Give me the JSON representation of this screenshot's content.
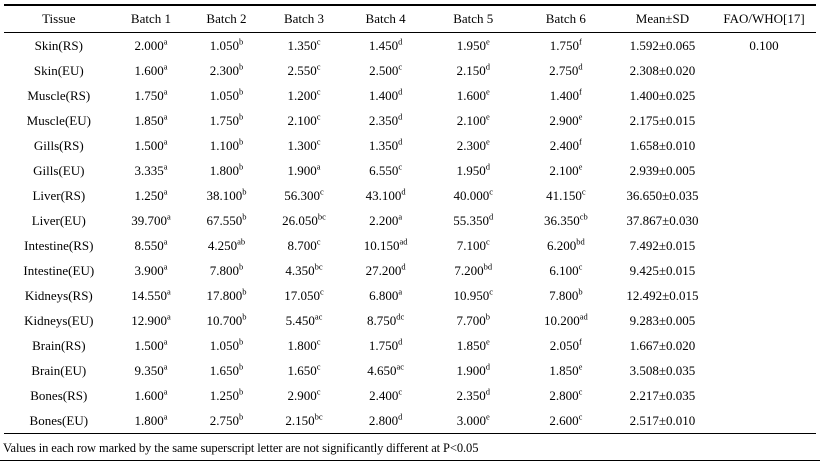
{
  "table": {
    "columns": [
      "Tissue",
      "Batch 1",
      "Batch 2",
      "Batch 3",
      "Batch 4",
      "Batch 5",
      "Batch 6",
      "Mean±SD",
      "FAO/WHO[17]"
    ],
    "rows": [
      {
        "tissue": "Skin(RS)",
        "cells": [
          [
            "2.000",
            "a"
          ],
          [
            "1.050",
            "b"
          ],
          [
            "1.350",
            "c"
          ],
          [
            "1.450",
            "d"
          ],
          [
            "1.950",
            "e"
          ],
          [
            "1.750",
            "f"
          ]
        ],
        "mean": "1.592±0.065",
        "fao": "0.100"
      },
      {
        "tissue": "Skin(EU)",
        "cells": [
          [
            "1.600",
            "a"
          ],
          [
            "2.300",
            "b"
          ],
          [
            "2.550",
            "c"
          ],
          [
            "2.500",
            "c"
          ],
          [
            "2.150",
            "d"
          ],
          [
            "2.750",
            "d"
          ]
        ],
        "mean": "2.308±0.020"
      },
      {
        "tissue": "Muscle(RS)",
        "cells": [
          [
            "1.750",
            "a"
          ],
          [
            "1.050",
            "b"
          ],
          [
            "1.200",
            "c"
          ],
          [
            "1.400",
            "d"
          ],
          [
            "1.600",
            "e"
          ],
          [
            "1.400",
            "f"
          ]
        ],
        "mean": "1.400±0.025"
      },
      {
        "tissue": "Muscle(EU)",
        "cells": [
          [
            "1.850",
            "a"
          ],
          [
            "1.750",
            "b"
          ],
          [
            "2.100",
            "c"
          ],
          [
            "2.350",
            "d"
          ],
          [
            "2.100",
            "e"
          ],
          [
            "2.900",
            "e"
          ]
        ],
        "mean": "2.175±0.015"
      },
      {
        "tissue": "Gills(RS)",
        "cells": [
          [
            "1.500",
            "a"
          ],
          [
            "1.100",
            "b"
          ],
          [
            "1.300",
            "c"
          ],
          [
            "1.350",
            "d"
          ],
          [
            "2.300",
            "e"
          ],
          [
            "2.400",
            "f"
          ]
        ],
        "mean": "1.658±0.010"
      },
      {
        "tissue": "Gills(EU)",
        "cells": [
          [
            "3.335",
            "a"
          ],
          [
            "1.800",
            "b"
          ],
          [
            "1.900",
            "a"
          ],
          [
            "6.550",
            "c"
          ],
          [
            "1.950",
            "d"
          ],
          [
            "2.100",
            "e"
          ]
        ],
        "mean": "2.939±0.005"
      },
      {
        "tissue": "Liver(RS)",
        "cells": [
          [
            "1.250",
            "a"
          ],
          [
            "38.100",
            "b"
          ],
          [
            "56.300",
            "c"
          ],
          [
            "43.100",
            "d"
          ],
          [
            "40.000",
            "c"
          ],
          [
            "41.150",
            "c"
          ]
        ],
        "mean": "36.650±0.035"
      },
      {
        "tissue": "Liver(EU)",
        "cells": [
          [
            "39.700",
            "a"
          ],
          [
            "67.550",
            "b"
          ],
          [
            "26.050",
            "bc"
          ],
          [
            "2.200",
            "a"
          ],
          [
            "55.350",
            "d"
          ],
          [
            "36.350",
            "cb"
          ]
        ],
        "mean": "37.867±0.030"
      },
      {
        "tissue": "Intestine(RS)",
        "cells": [
          [
            "8.550",
            "a"
          ],
          [
            "4.250",
            "ab"
          ],
          [
            "8.700",
            "c"
          ],
          [
            "10.150",
            "ad"
          ],
          [
            "7.100",
            "c"
          ],
          [
            "6.200",
            "bd"
          ]
        ],
        "mean": "7.492±0.015"
      },
      {
        "tissue": "Intestine(EU)",
        "cells": [
          [
            "3.900",
            "a"
          ],
          [
            "7.800",
            "b"
          ],
          [
            "4.350",
            "bc"
          ],
          [
            "27.200",
            "d"
          ],
          [
            "7.200",
            "bd"
          ],
          [
            "6.100",
            "c"
          ]
        ],
        "mean": "9.425±0.015"
      },
      {
        "tissue": "Kidneys(RS)",
        "cells": [
          [
            "14.550",
            "a"
          ],
          [
            "17.800",
            "b"
          ],
          [
            "17.050",
            "c"
          ],
          [
            "6.800",
            "a"
          ],
          [
            "10.950",
            "c"
          ],
          [
            "7.800",
            "b"
          ]
        ],
        "mean": "12.492±0.015"
      },
      {
        "tissue": "Kidneys(EU)",
        "cells": [
          [
            "12.900",
            "a"
          ],
          [
            "10.700",
            "b"
          ],
          [
            "5.450",
            "ac"
          ],
          [
            "8.750",
            "dc"
          ],
          [
            "7.700",
            "b"
          ],
          [
            "10.200",
            "ad"
          ]
        ],
        "mean": "9.283±0.005"
      },
      {
        "tissue": "Brain(RS)",
        "cells": [
          [
            "1.500",
            "a"
          ],
          [
            "1.050",
            "b"
          ],
          [
            "1.800",
            "c"
          ],
          [
            "1.750",
            "d"
          ],
          [
            "1.850",
            "e"
          ],
          [
            "2.050",
            "f"
          ]
        ],
        "mean": "1.667±0.020"
      },
      {
        "tissue": "Brain(EU)",
        "cells": [
          [
            "9.350",
            "a"
          ],
          [
            "1.650",
            "b"
          ],
          [
            "1.650",
            "c"
          ],
          [
            "4.650",
            "ac"
          ],
          [
            "1.900",
            "d"
          ],
          [
            "1.850",
            "e"
          ]
        ],
        "mean": "3.508±0.035"
      },
      {
        "tissue": "Bones(RS)",
        "cells": [
          [
            "1.600",
            "a"
          ],
          [
            "1.250",
            "b"
          ],
          [
            "2.900",
            "c"
          ],
          [
            "2.400",
            "c"
          ],
          [
            "2.350",
            "d"
          ],
          [
            "2.800",
            "c"
          ]
        ],
        "mean": "2.217±0.035"
      },
      {
        "tissue": "Bones(EU)",
        "cells": [
          [
            "1.800",
            "a"
          ],
          [
            "2.750",
            "b"
          ],
          [
            "2.150",
            "bc"
          ],
          [
            "2.800",
            "d"
          ],
          [
            "3.000",
            "e"
          ],
          [
            "2.600",
            "c"
          ]
        ],
        "mean": "2.517±0.010"
      }
    ]
  },
  "footnote": "Values in each row marked by the same superscript letter are not significantly different at P<0.05"
}
